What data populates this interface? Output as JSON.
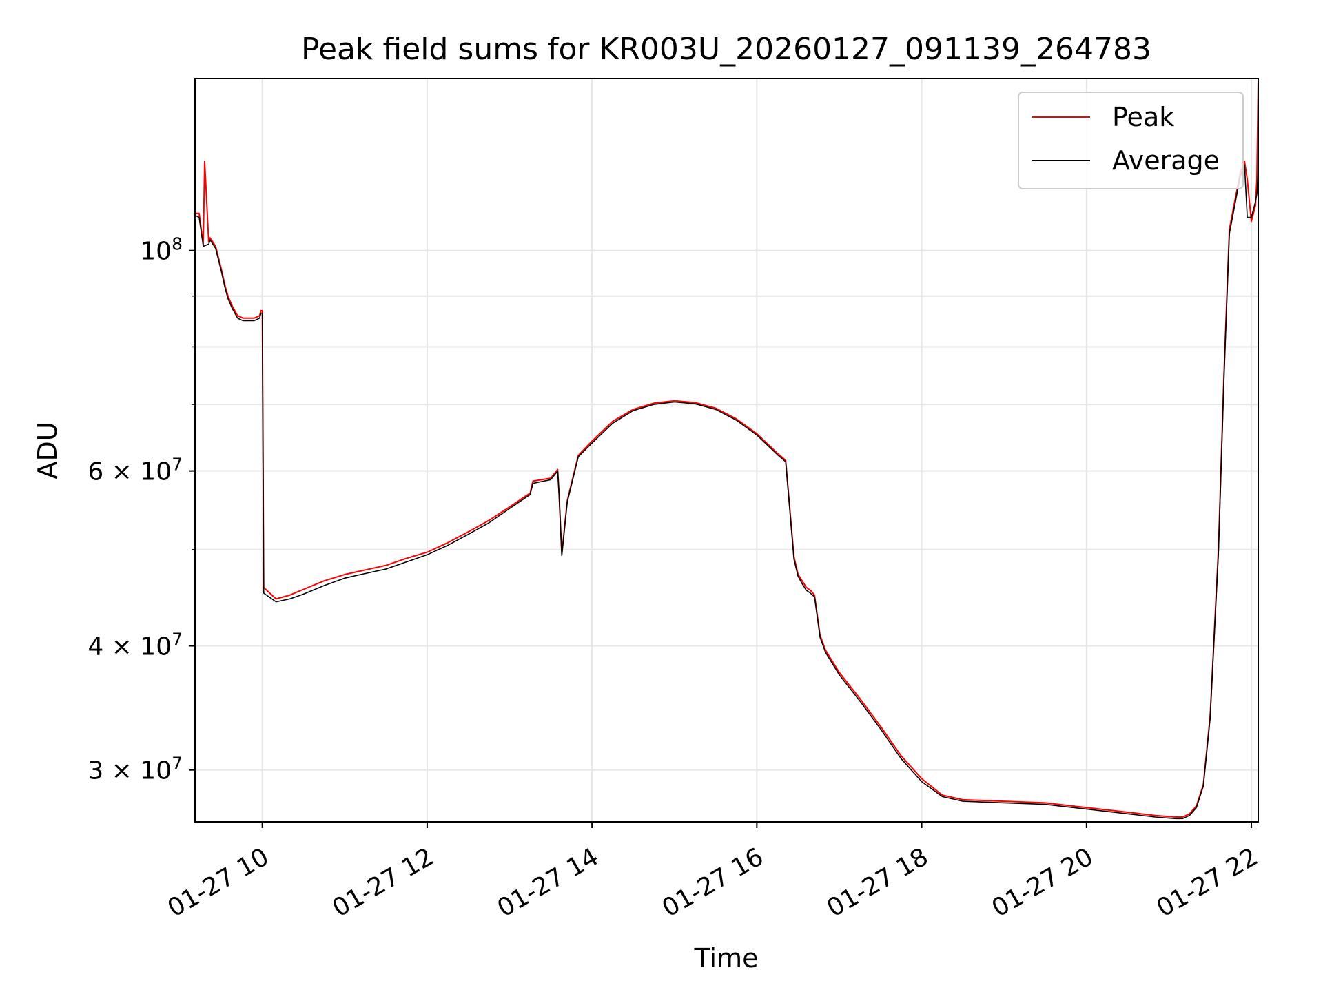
{
  "chart_data": {
    "type": "line",
    "title": "Peak field sums for KR003U_20260127_091139_264783",
    "xlabel": "Time",
    "ylabel": "ADU",
    "yscale": "log",
    "grid": true,
    "legend_position": "top-right",
    "xlim": [
      "2026-01-27 09:11",
      "2026-01-27 22:05"
    ],
    "ylim": [
      26600000,
      149000000
    ],
    "x_ticks": [
      {
        "value": "2026-01-27 10:00",
        "label": "01-27 10"
      },
      {
        "value": "2026-01-27 12:00",
        "label": "01-27 12"
      },
      {
        "value": "2026-01-27 14:00",
        "label": "01-27 14"
      },
      {
        "value": "2026-01-27 16:00",
        "label": "01-27 16"
      },
      {
        "value": "2026-01-27 18:00",
        "label": "01-27 18"
      },
      {
        "value": "2026-01-27 20:00",
        "label": "01-27 20"
      },
      {
        "value": "2026-01-27 22:00",
        "label": "01-27 22"
      }
    ],
    "y_ticks": [
      {
        "value": 30000000,
        "base": "3 × 10",
        "exp": "7"
      },
      {
        "value": 40000000,
        "base": "4 × 10",
        "exp": "7"
      },
      {
        "value": 60000000,
        "base": "6 × 10",
        "exp": "7"
      },
      {
        "value": 100000000,
        "base": "10",
        "exp": "8"
      }
    ],
    "y_minor_ticks": [
      50000000,
      70000000,
      80000000,
      90000000
    ],
    "series": [
      {
        "name": "Peak",
        "color": "#ff0000",
        "x": [
          "2026-01-27 09:11",
          "2026-01-27 09:14",
          "2026-01-27 09:17",
          "2026-01-27 09:18",
          "2026-01-27 09:21",
          "2026-01-27 09:22",
          "2026-01-27 09:26",
          "2026-01-27 09:30",
          "2026-01-27 09:33",
          "2026-01-27 09:35",
          "2026-01-27 09:38",
          "2026-01-27 09:42",
          "2026-01-27 09:46",
          "2026-01-27 09:50",
          "2026-01-27 09:54",
          "2026-01-27 09:58",
          "2026-01-27 09:59",
          "2026-01-27 10:00",
          "2026-01-27 10:01",
          "2026-01-27 10:10",
          "2026-01-27 10:20",
          "2026-01-27 10:30",
          "2026-01-27 10:45",
          "2026-01-27 11:00",
          "2026-01-27 11:15",
          "2026-01-27 11:30",
          "2026-01-27 11:45",
          "2026-01-27 12:00",
          "2026-01-27 12:15",
          "2026-01-27 12:30",
          "2026-01-27 12:45",
          "2026-01-27 13:00",
          "2026-01-27 13:15",
          "2026-01-27 13:17",
          "2026-01-27 13:30",
          "2026-01-27 13:35",
          "2026-01-27 13:36",
          "2026-01-27 13:38",
          "2026-01-27 13:42",
          "2026-01-27 13:50",
          "2026-01-27 14:00",
          "2026-01-27 14:15",
          "2026-01-27 14:30",
          "2026-01-27 14:45",
          "2026-01-27 15:00",
          "2026-01-27 15:15",
          "2026-01-27 15:30",
          "2026-01-27 15:45",
          "2026-01-27 16:00",
          "2026-01-27 16:15",
          "2026-01-27 16:21",
          "2026-01-27 16:27",
          "2026-01-27 16:30",
          "2026-01-27 16:33",
          "2026-01-27 16:36",
          "2026-01-27 16:39",
          "2026-01-27 16:42",
          "2026-01-27 16:46",
          "2026-01-27 16:50",
          "2026-01-27 17:00",
          "2026-01-27 17:15",
          "2026-01-27 17:30",
          "2026-01-27 17:45",
          "2026-01-27 18:00",
          "2026-01-27 18:15",
          "2026-01-27 18:30",
          "2026-01-27 19:00",
          "2026-01-27 19:30",
          "2026-01-27 20:00",
          "2026-01-27 20:30",
          "2026-01-27 20:50",
          "2026-01-27 21:05",
          "2026-01-27 21:10",
          "2026-01-27 21:15",
          "2026-01-27 21:20",
          "2026-01-27 21:25",
          "2026-01-27 21:30",
          "2026-01-27 21:36",
          "2026-01-27 21:40",
          "2026-01-27 21:44",
          "2026-01-27 21:52",
          "2026-01-27 21:55",
          "2026-01-27 21:57",
          "2026-01-27 22:00",
          "2026-01-27 22:03",
          "2026-01-27 22:04",
          "2026-01-27 22:05"
        ],
        "y": [
          109000000,
          109000000,
          101500000,
          123000000,
          102000000,
          103000000,
          101000000,
          96000000,
          92000000,
          90000000,
          88000000,
          86000000,
          85500000,
          85500000,
          85500000,
          86000000,
          87000000,
          87000000,
          45800000,
          44600000,
          45000000,
          45600000,
          46500000,
          47200000,
          47700000,
          48200000,
          49000000,
          49700000,
          50800000,
          52100000,
          53500000,
          55200000,
          57000000,
          58600000,
          59000000,
          60200000,
          57000000,
          49500000,
          56000000,
          62200000,
          64300000,
          67300000,
          69200000,
          70200000,
          70600000,
          70300000,
          69400000,
          67700000,
          65400000,
          62500000,
          61500000,
          49200000,
          47200000,
          46500000,
          45800000,
          45500000,
          45000000,
          41000000,
          39600000,
          37600000,
          35400000,
          33200000,
          31000000,
          29400000,
          28300000,
          28000000,
          27900000,
          27800000,
          27500000,
          27200000,
          27000000,
          26900000,
          26900000,
          27100000,
          27600000,
          29000000,
          34000000,
          50000000,
          75000000,
          105000000,
          120000000,
          123000000,
          118000000,
          107000000,
          111000000,
          118000000,
          149000000
        ]
      },
      {
        "name": "Average",
        "color": "#000000",
        "x": [
          "2026-01-27 09:11",
          "2026-01-27 09:14",
          "2026-01-27 09:17",
          "2026-01-27 09:21",
          "2026-01-27 09:22",
          "2026-01-27 09:26",
          "2026-01-27 09:30",
          "2026-01-27 09:33",
          "2026-01-27 09:35",
          "2026-01-27 09:38",
          "2026-01-27 09:42",
          "2026-01-27 09:46",
          "2026-01-27 09:50",
          "2026-01-27 09:54",
          "2026-01-27 09:58",
          "2026-01-27 09:59",
          "2026-01-27 10:00",
          "2026-01-27 10:01",
          "2026-01-27 10:10",
          "2026-01-27 10:20",
          "2026-01-27 10:30",
          "2026-01-27 10:45",
          "2026-01-27 11:00",
          "2026-01-27 11:15",
          "2026-01-27 11:30",
          "2026-01-27 11:45",
          "2026-01-27 12:00",
          "2026-01-27 12:15",
          "2026-01-27 12:30",
          "2026-01-27 12:45",
          "2026-01-27 13:00",
          "2026-01-27 13:15",
          "2026-01-27 13:17",
          "2026-01-27 13:30",
          "2026-01-27 13:35",
          "2026-01-27 13:36",
          "2026-01-27 13:38",
          "2026-01-27 13:42",
          "2026-01-27 13:50",
          "2026-01-27 14:00",
          "2026-01-27 14:15",
          "2026-01-27 14:30",
          "2026-01-27 14:45",
          "2026-01-27 15:00",
          "2026-01-27 15:15",
          "2026-01-27 15:30",
          "2026-01-27 15:45",
          "2026-01-27 16:00",
          "2026-01-27 16:15",
          "2026-01-27 16:21",
          "2026-01-27 16:27",
          "2026-01-27 16:30",
          "2026-01-27 16:33",
          "2026-01-27 16:36",
          "2026-01-27 16:39",
          "2026-01-27 16:42",
          "2026-01-27 16:46",
          "2026-01-27 16:50",
          "2026-01-27 17:00",
          "2026-01-27 17:15",
          "2026-01-27 17:30",
          "2026-01-27 17:45",
          "2026-01-27 18:00",
          "2026-01-27 18:15",
          "2026-01-27 18:30",
          "2026-01-27 19:00",
          "2026-01-27 19:30",
          "2026-01-27 20:00",
          "2026-01-27 20:30",
          "2026-01-27 20:50",
          "2026-01-27 21:05",
          "2026-01-27 21:10",
          "2026-01-27 21:15",
          "2026-01-27 21:20",
          "2026-01-27 21:25",
          "2026-01-27 21:30",
          "2026-01-27 21:36",
          "2026-01-27 21:40",
          "2026-01-27 21:44",
          "2026-01-27 21:52",
          "2026-01-27 21:55",
          "2026-01-27 21:57",
          "2026-01-27 22:00",
          "2026-01-27 22:03",
          "2026-01-27 22:04",
          "2026-01-27 22:05"
        ],
        "y": [
          108500000,
          108000000,
          101000000,
          101500000,
          102500000,
          100500000,
          95500000,
          91500000,
          89500000,
          87500000,
          85500000,
          85000000,
          85000000,
          85000000,
          85500000,
          86500000,
          86500000,
          45200000,
          44300000,
          44600000,
          45100000,
          46000000,
          46800000,
          47300000,
          47800000,
          48600000,
          49400000,
          50500000,
          51800000,
          53200000,
          55000000,
          56800000,
          58300000,
          58800000,
          60000000,
          56800000,
          49300000,
          55800000,
          62000000,
          64000000,
          67000000,
          69000000,
          70000000,
          70400000,
          70100000,
          69200000,
          67500000,
          65200000,
          62300000,
          61300000,
          48900000,
          47000000,
          46200000,
          45500000,
          45200000,
          44800000,
          40800000,
          39400000,
          37400000,
          35200000,
          33000000,
          30800000,
          29200000,
          28200000,
          27900000,
          27800000,
          27700000,
          27400000,
          27100000,
          26900000,
          26800000,
          26800000,
          27000000,
          27500000,
          28900000,
          33800000,
          49500000,
          74000000,
          104000000,
          119000000,
          122000000,
          108000000,
          108000000,
          112000000,
          114000000,
          120000000
        ]
      }
    ]
  }
}
